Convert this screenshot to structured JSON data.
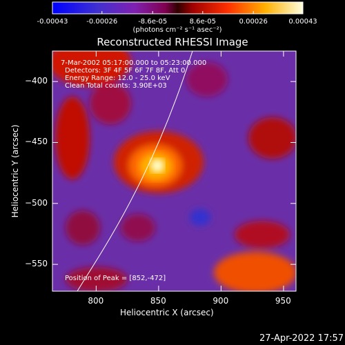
{
  "colorbar": {
    "ticks": [
      "-0.00043",
      "-0.00026",
      "-8.6e-05",
      "8.6e-05",
      "0.00026",
      "0.00043"
    ],
    "min": -0.00043,
    "max": 0.00043,
    "unit": "(photons cm⁻² s⁻¹ asec⁻²)"
  },
  "chart_data": {
    "type": "heatmap",
    "title": "Reconstructed RHESSI Image",
    "xlabel": "Heliocentric X (arcsec)",
    "ylabel": "Heliocentric Y (arcsec)",
    "xlim": [
      765,
      960
    ],
    "ylim": [
      -572,
      -375
    ],
    "x_ticks": [
      800,
      850,
      900,
      950
    ],
    "y_ticks": [
      -400,
      -450,
      -500,
      -550
    ],
    "x_tick_labels": [
      "800",
      "850",
      "900",
      "950"
    ],
    "y_tick_labels": [
      "−400",
      "−450",
      "−500",
      "−550"
    ],
    "peak": [
      852,
      -472
    ],
    "annotations": {
      "time": "7-Mar-2002 05:17:00.000 to 05:23:00.000",
      "detectors": "Detectors: 3F 4F 5F 6F 7F 8F, Att 0",
      "energy": "Energy Range: 12.0 - 25.0 keV",
      "clean": "Clean    Total counts: 3.90E+03",
      "peak_text": "Position of Peak = [852,-472]"
    }
  },
  "footer": {
    "date": "27-Apr-2022 17:57"
  }
}
